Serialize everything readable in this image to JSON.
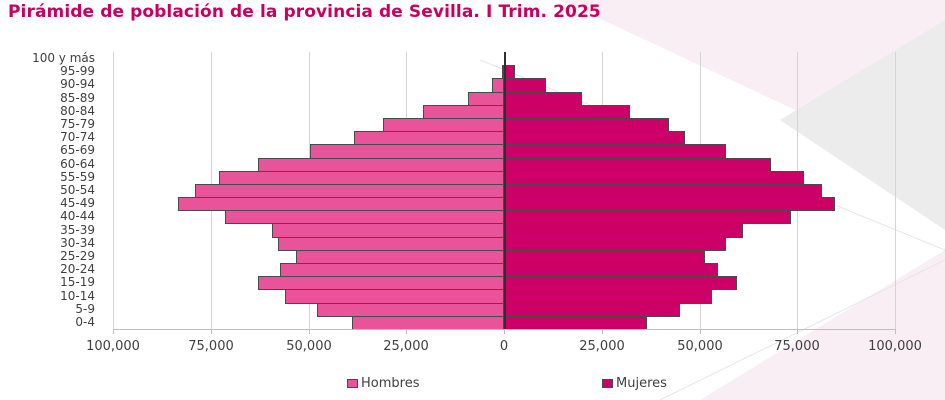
{
  "title": "Pirámide de población de la provincia de Sevilla. I Trim. 2025",
  "colors": {
    "title": "#C8005F",
    "hombres": "#E8539A",
    "mujeres": "#CC0066",
    "bar_border": "#4a4a4a",
    "grid": "#d4d4d4"
  },
  "legend": {
    "hombres": "Hombres",
    "mujeres": "Mujeres"
  },
  "x_ticks": [
    "100,000",
    "75,000",
    "50,000",
    "25,000",
    "0",
    "25,000",
    "50,000",
    "75,000",
    "100,000"
  ],
  "chart_data": {
    "type": "bar",
    "orientation": "horizontal-pyramid",
    "title": "Pirámide de población de la provincia de Sevilla. I Trim. 2025",
    "xlabel": "",
    "ylabel": "",
    "xlim": [
      -100000,
      100000
    ],
    "x_tick_values": [
      -100000,
      -75000,
      -50000,
      -25000,
      0,
      25000,
      50000,
      75000,
      100000
    ],
    "x_tick_labels": [
      "100,000",
      "75,000",
      "50,000",
      "25,000",
      "0",
      "25,000",
      "50,000",
      "75,000",
      "100,000"
    ],
    "grid": "vertical",
    "legend_position": "bottom",
    "categories": [
      "0-4",
      "5-9",
      "10-14",
      "15-19",
      "20-24",
      "25-29",
      "30-34",
      "35-39",
      "40-44",
      "45-49",
      "50-54",
      "55-59",
      "60-64",
      "65-69",
      "70-74",
      "75-79",
      "80-84",
      "85-89",
      "90-94",
      "95-99",
      "100 y más"
    ],
    "series": [
      {
        "name": "Hombres",
        "side": "left",
        "color": "#E8539A",
        "values": [
          38800,
          47700,
          55900,
          63000,
          57400,
          53100,
          57700,
          59400,
          71400,
          83400,
          79100,
          73000,
          62800,
          49500,
          38300,
          30900,
          20700,
          9200,
          3100,
          500,
          100
        ]
      },
      {
        "name": "Mujeres",
        "side": "right",
        "color": "#CC0066",
        "values": [
          36700,
          44900,
          53300,
          59700,
          54800,
          51500,
          56900,
          61200,
          73500,
          84700,
          81400,
          76800,
          68400,
          56900,
          46200,
          42100,
          32100,
          19900,
          10700,
          2800,
          500
        ]
      }
    ]
  }
}
